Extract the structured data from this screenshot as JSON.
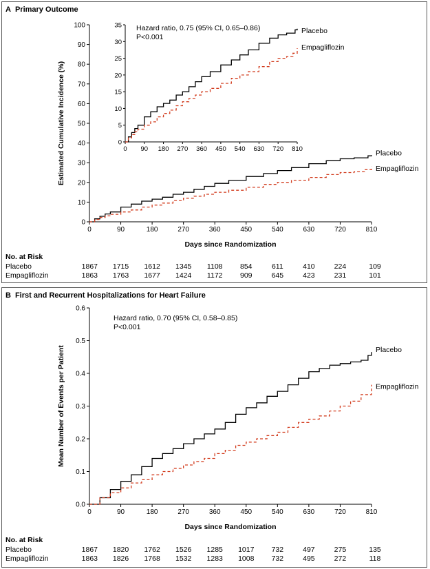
{
  "panel_a": {
    "letter": "A",
    "title": "Primary Outcome",
    "risk_header": "No. at Risk",
    "risk_groups": [
      {
        "name": "Placebo",
        "values": [
          1867,
          1715,
          1612,
          1345,
          1108,
          854,
          611,
          410,
          224,
          109
        ]
      },
      {
        "name": "Empagliflozin",
        "values": [
          1863,
          1763,
          1677,
          1424,
          1172,
          909,
          645,
          423,
          231,
          101
        ]
      }
    ]
  },
  "panel_b": {
    "letter": "B",
    "title": "First and Recurrent Hospitalizations for Heart Failure",
    "risk_header": "No. at Risk",
    "risk_groups": [
      {
        "name": "Placebo",
        "values": [
          1867,
          1820,
          1762,
          1526,
          1285,
          1017,
          732,
          497,
          275,
          135
        ]
      },
      {
        "name": "Empagliflozin",
        "values": [
          1863,
          1826,
          1768,
          1532,
          1283,
          1008,
          732,
          495,
          272,
          118
        ]
      }
    ]
  },
  "chart_data": [
    {
      "type": "line",
      "id": "a-main",
      "title": "",
      "xlabel": "Days since Randomization",
      "ylabel": "Estimated Cumulative Incidence (%)",
      "xlim": [
        0,
        810
      ],
      "ylim": [
        0,
        100
      ],
      "xticks": [
        0,
        90,
        180,
        270,
        360,
        450,
        540,
        630,
        720,
        810
      ],
      "yticks": [
        0,
        10,
        20,
        30,
        40,
        50,
        60,
        70,
        80,
        90,
        100
      ],
      "grid": false,
      "series": [
        {
          "name": "Placebo",
          "color": "#000000",
          "dash": "solid",
          "x": [
            0,
            15,
            30,
            45,
            60,
            90,
            120,
            150,
            180,
            210,
            240,
            270,
            300,
            330,
            360,
            400,
            450,
            500,
            540,
            580,
            630,
            680,
            720,
            760,
            790,
            800,
            810
          ],
          "y": [
            0,
            1.5,
            2.8,
            4.0,
            5.0,
            7.5,
            9.0,
            10.5,
            11.5,
            12.5,
            14.0,
            15.0,
            16.5,
            18.0,
            19.5,
            21.0,
            23.0,
            24.5,
            26.0,
            27.5,
            29.5,
            31.0,
            32.0,
            32.5,
            32.5,
            33.5,
            33.8
          ]
        },
        {
          "name": "Empagliflozin",
          "color": "#d23c1e",
          "dash": "dashed",
          "x": [
            0,
            15,
            30,
            45,
            60,
            90,
            120,
            150,
            180,
            210,
            240,
            270,
            300,
            330,
            360,
            400,
            450,
            500,
            540,
            580,
            630,
            680,
            720,
            760,
            790,
            810
          ],
          "y": [
            0,
            1.2,
            2.2,
            3.0,
            3.8,
            5.0,
            6.0,
            7.5,
            8.5,
            9.5,
            10.8,
            12.0,
            13.0,
            14.0,
            15.0,
            16.0,
            17.5,
            19.0,
            20.0,
            21.0,
            22.5,
            24.0,
            25.0,
            25.5,
            26.5,
            28.0
          ]
        }
      ]
    },
    {
      "type": "line",
      "id": "a-inset",
      "title": "",
      "xlim": [
        0,
        810
      ],
      "ylim": [
        0,
        35
      ],
      "xticks": [
        0,
        90,
        180,
        270,
        360,
        450,
        540,
        630,
        720,
        810
      ],
      "yticks": [
        0,
        5,
        10,
        15,
        20,
        25,
        30,
        35
      ],
      "annotation": {
        "lines": [
          "Hazard ratio, 0.75 (95% CI, 0.65–0.86)",
          "P<0.001"
        ]
      },
      "grid": false,
      "series": [
        {
          "name": "Placebo",
          "color": "#000000",
          "dash": "solid",
          "x": [
            0,
            15,
            30,
            45,
            60,
            90,
            120,
            150,
            180,
            210,
            240,
            270,
            300,
            330,
            360,
            400,
            450,
            500,
            540,
            580,
            630,
            680,
            720,
            760,
            790,
            800,
            810
          ],
          "y": [
            0,
            1.5,
            2.8,
            4.0,
            5.0,
            7.5,
            9.0,
            10.5,
            11.5,
            12.5,
            14.0,
            15.0,
            16.5,
            18.0,
            19.5,
            21.0,
            23.0,
            24.5,
            26.0,
            27.5,
            29.5,
            31.0,
            32.0,
            32.5,
            32.5,
            33.5,
            33.8
          ]
        },
        {
          "name": "Empagliflozin",
          "color": "#d23c1e",
          "dash": "dashed",
          "x": [
            0,
            15,
            30,
            45,
            60,
            90,
            120,
            150,
            180,
            210,
            240,
            270,
            300,
            330,
            360,
            400,
            450,
            500,
            540,
            580,
            630,
            680,
            720,
            760,
            790,
            810
          ],
          "y": [
            0,
            1.2,
            2.2,
            3.0,
            3.8,
            5.0,
            6.0,
            7.5,
            8.5,
            9.5,
            10.8,
            12.0,
            13.0,
            14.0,
            15.0,
            16.0,
            17.5,
            19.0,
            20.0,
            21.0,
            22.5,
            24.0,
            25.0,
            25.5,
            26.5,
            28.0
          ]
        }
      ]
    },
    {
      "type": "line",
      "id": "b-main",
      "title": "",
      "xlabel": "Days since Randomization",
      "ylabel": "Mean Number of Events per Patient",
      "xlim": [
        0,
        810
      ],
      "ylim": [
        0,
        0.6
      ],
      "xticks": [
        0,
        90,
        180,
        270,
        360,
        450,
        540,
        630,
        720,
        810
      ],
      "yticks": [
        0.0,
        0.1,
        0.2,
        0.3,
        0.4,
        0.5,
        0.6
      ],
      "ytick_labels": [
        "0.0",
        "0.1",
        "0.2",
        "0.3",
        "0.4",
        "0.5",
        "0.6"
      ],
      "annotation": {
        "lines": [
          "Hazard ratio, 0.70 (95% CI, 0.58–0.85)",
          "P<0.001"
        ]
      },
      "grid": false,
      "series": [
        {
          "name": "Placebo",
          "color": "#000000",
          "dash": "solid",
          "x": [
            0,
            30,
            60,
            90,
            120,
            150,
            180,
            210,
            240,
            270,
            300,
            330,
            360,
            390,
            420,
            450,
            480,
            510,
            540,
            570,
            600,
            630,
            660,
            690,
            720,
            750,
            780,
            800,
            810
          ],
          "y": [
            0,
            0.02,
            0.045,
            0.07,
            0.09,
            0.115,
            0.14,
            0.155,
            0.17,
            0.185,
            0.2,
            0.215,
            0.23,
            0.25,
            0.275,
            0.295,
            0.31,
            0.33,
            0.345,
            0.365,
            0.385,
            0.405,
            0.415,
            0.425,
            0.43,
            0.435,
            0.44,
            0.455,
            0.465
          ]
        },
        {
          "name": "Empagliflozin",
          "color": "#d23c1e",
          "dash": "dashed",
          "x": [
            0,
            30,
            60,
            90,
            120,
            150,
            180,
            210,
            240,
            270,
            300,
            330,
            360,
            390,
            420,
            450,
            480,
            510,
            540,
            570,
            600,
            630,
            660,
            690,
            720,
            750,
            780,
            810
          ],
          "y": [
            0,
            0.02,
            0.035,
            0.05,
            0.065,
            0.075,
            0.09,
            0.1,
            0.11,
            0.12,
            0.13,
            0.14,
            0.155,
            0.165,
            0.18,
            0.19,
            0.2,
            0.21,
            0.22,
            0.235,
            0.25,
            0.26,
            0.27,
            0.285,
            0.3,
            0.315,
            0.335,
            0.365
          ]
        }
      ]
    }
  ]
}
